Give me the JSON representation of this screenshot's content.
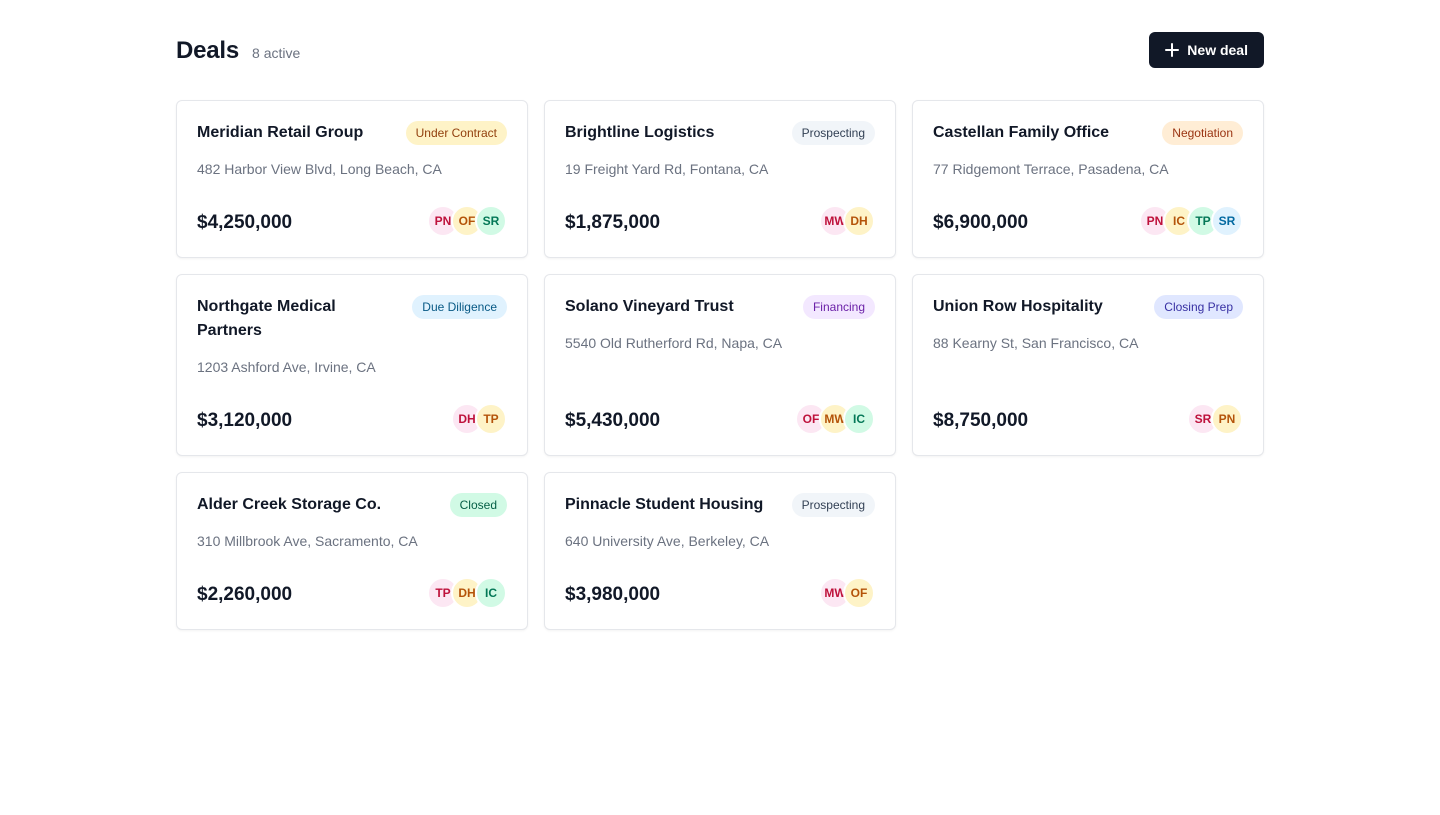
{
  "header": {
    "title": "Deals",
    "active_count": "8 active",
    "new_deal_label": "New deal"
  },
  "colors": {
    "primary": "#111827",
    "muted_text": "#6b7280",
    "card_border": "#e5e7eb"
  },
  "deals": [
    {
      "name": "Meridian Retail Group",
      "status": "Under Contract",
      "status_bg": "#fef3c7",
      "status_fg": "#92400e",
      "address": "482 Harbor View Blvd, Long Beach, CA",
      "value": "$4,250,000",
      "team": [
        {
          "initials": "PN",
          "tone": "pink"
        },
        {
          "initials": "OF",
          "tone": "amber"
        },
        {
          "initials": "SR",
          "tone": "green"
        }
      ]
    },
    {
      "name": "Brightline Logistics",
      "status": "Prospecting",
      "status_bg": "#f1f5f9",
      "status_fg": "#334155",
      "address": "19 Freight Yard Rd, Fontana, CA",
      "value": "$1,875,000",
      "team": [
        {
          "initials": "MW",
          "tone": "pink"
        },
        {
          "initials": "DH",
          "tone": "amber"
        }
      ]
    },
    {
      "name": "Castellan Family Office",
      "status": "Negotiation",
      "status_bg": "#ffedd5",
      "status_fg": "#9a3412",
      "address": "77 Ridgemont Terrace, Pasadena, CA",
      "value": "$6,900,000",
      "team": [
        {
          "initials": "PN",
          "tone": "pink"
        },
        {
          "initials": "IC",
          "tone": "amber"
        },
        {
          "initials": "TP",
          "tone": "green"
        },
        {
          "initials": "SR",
          "tone": "blue"
        }
      ]
    },
    {
      "name": "Northgate Medical Partners",
      "status": "Due Diligence",
      "status_bg": "#e0f2fe",
      "status_fg": "#075985",
      "address": "1203 Ashford Ave, Irvine, CA",
      "value": "$3,120,000",
      "team": [
        {
          "initials": "DH",
          "tone": "pink"
        },
        {
          "initials": "TP",
          "tone": "amber"
        }
      ]
    },
    {
      "name": "Solano Vineyard Trust",
      "status": "Financing",
      "status_bg": "#f3e8ff",
      "status_fg": "#6b21a8",
      "address": "5540 Old Rutherford Rd, Napa, CA",
      "value": "$5,430,000",
      "team": [
        {
          "initials": "OF",
          "tone": "pink"
        },
        {
          "initials": "MW",
          "tone": "amber"
        },
        {
          "initials": "IC",
          "tone": "green"
        }
      ]
    },
    {
      "name": "Union Row Hospitality",
      "status": "Closing Prep",
      "status_bg": "#e0e7ff",
      "status_fg": "#3730a3",
      "address": "88 Kearny St, San Francisco, CA",
      "value": "$8,750,000",
      "team": [
        {
          "initials": "SR",
          "tone": "pink"
        },
        {
          "initials": "PN",
          "tone": "amber"
        }
      ]
    },
    {
      "name": "Alder Creek Storage Co.",
      "status": "Closed",
      "status_bg": "#d1fae5",
      "status_fg": "#065f46",
      "address": "310 Millbrook Ave, Sacramento, CA",
      "value": "$2,260,000",
      "team": [
        {
          "initials": "TP",
          "tone": "pink"
        },
        {
          "initials": "DH",
          "tone": "amber"
        },
        {
          "initials": "IC",
          "tone": "green"
        }
      ]
    },
    {
      "name": "Pinnacle Student Housing",
      "status": "Prospecting",
      "status_bg": "#f1f5f9",
      "status_fg": "#334155",
      "address": "640 University Ave, Berkeley, CA",
      "value": "$3,980,000",
      "team": [
        {
          "initials": "MW",
          "tone": "pink"
        },
        {
          "initials": "OF",
          "tone": "amber"
        }
      ]
    }
  ]
}
